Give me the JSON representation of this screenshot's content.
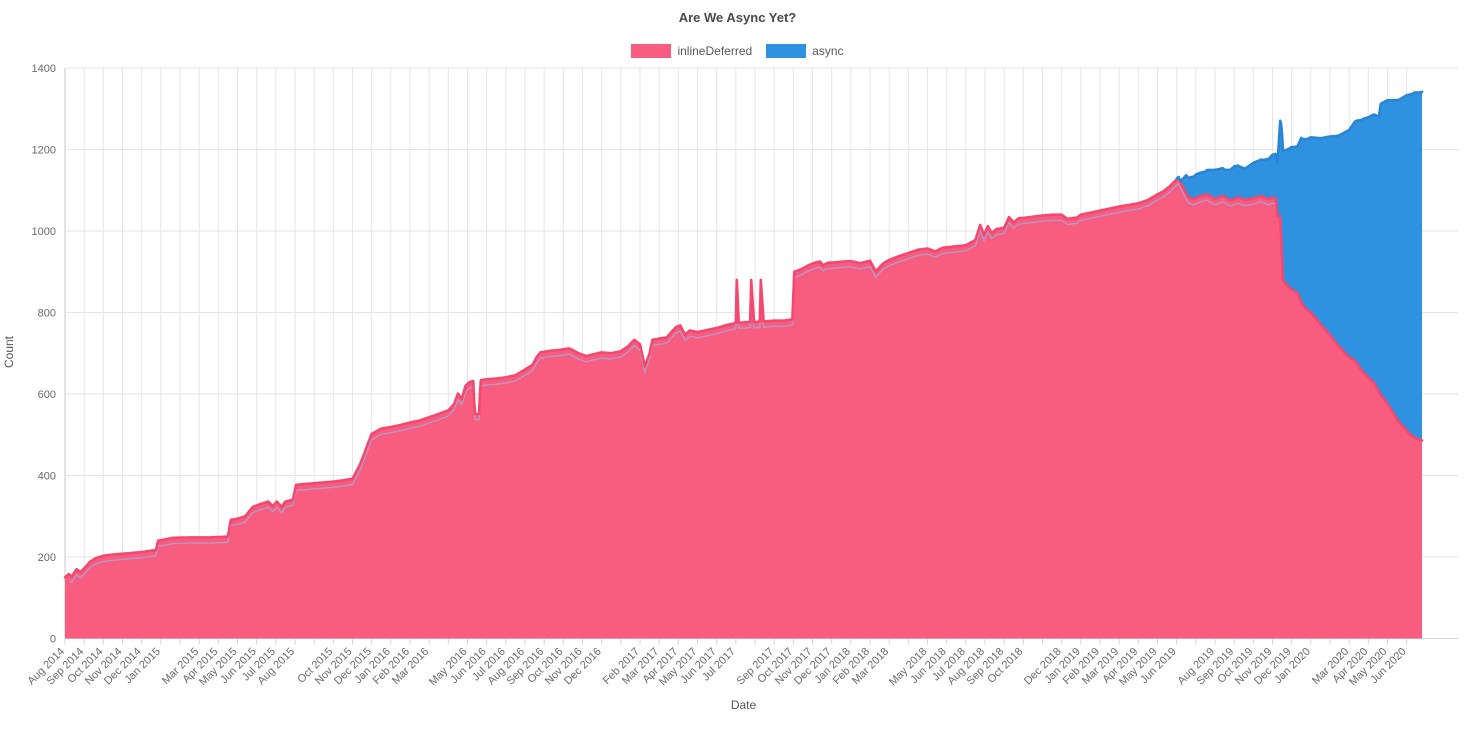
{
  "chart_data": {
    "type": "area",
    "stacked": true,
    "title": "Are We Async Yet?",
    "xlabel": "Date",
    "ylabel": "Count",
    "ylim": [
      0,
      1400
    ],
    "ytick_labels": [
      "0",
      "200",
      "400",
      "600",
      "800",
      "1000",
      "1200",
      "1400"
    ],
    "grid": true,
    "legend_position": "top",
    "x_domain": [
      0,
      70.8
    ],
    "x_months_total": 71,
    "x_ticks": [
      [
        0,
        "Aug 2014"
      ],
      [
        1,
        "Sep 2014"
      ],
      [
        2,
        "Oct 2014"
      ],
      [
        3,
        "Nov 2014"
      ],
      [
        4,
        "Dec 2014"
      ],
      [
        5,
        "Jan 2015"
      ],
      [
        7,
        "Mar 2015"
      ],
      [
        8,
        "Apr 2015"
      ],
      [
        9,
        "May 2015"
      ],
      [
        10,
        "Jun 2015"
      ],
      [
        11,
        "Jul 2015"
      ],
      [
        12,
        "Aug 2015"
      ],
      [
        14,
        "Oct 2015"
      ],
      [
        15,
        "Nov 2015"
      ],
      [
        16,
        "Dec 2015"
      ],
      [
        17,
        "Jan 2016"
      ],
      [
        18,
        "Feb 2016"
      ],
      [
        19,
        "Mar 2016"
      ],
      [
        21,
        "May 2016"
      ],
      [
        22,
        "Jun 2016"
      ],
      [
        23,
        "Jul 2016"
      ],
      [
        24,
        "Aug 2016"
      ],
      [
        25,
        "Sep 2016"
      ],
      [
        26,
        "Oct 2016"
      ],
      [
        27,
        "Nov 2016"
      ],
      [
        28,
        "Dec 2016"
      ],
      [
        30,
        "Feb 2017"
      ],
      [
        31,
        "Mar 2017"
      ],
      [
        32,
        "Apr 2017"
      ],
      [
        33,
        "May 2017"
      ],
      [
        34,
        "Jun 2017"
      ],
      [
        35,
        "Jul 2017"
      ],
      [
        37,
        "Sep 2017"
      ],
      [
        38,
        "Oct 2017"
      ],
      [
        39,
        "Nov 2017"
      ],
      [
        40,
        "Dec 2017"
      ],
      [
        41,
        "Jan 2018"
      ],
      [
        42,
        "Feb 2018"
      ],
      [
        43,
        "Mar 2018"
      ],
      [
        45,
        "May 2018"
      ],
      [
        46,
        "Jun 2018"
      ],
      [
        47,
        "Jul 2018"
      ],
      [
        48,
        "Aug 2018"
      ],
      [
        49,
        "Sep 2018"
      ],
      [
        50,
        "Oct 2018"
      ],
      [
        52,
        "Dec 2018"
      ],
      [
        53,
        "Jan 2019"
      ],
      [
        54,
        "Feb 2019"
      ],
      [
        55,
        "Mar 2019"
      ],
      [
        56,
        "Apr 2019"
      ],
      [
        57,
        "May 2019"
      ],
      [
        58,
        "Jun 2019"
      ],
      [
        60,
        "Aug 2019"
      ],
      [
        61,
        "Sep 2019"
      ],
      [
        62,
        "Oct 2019"
      ],
      [
        63,
        "Nov 2019"
      ],
      [
        64,
        "Dec 2019"
      ],
      [
        65,
        "Jan 2020"
      ],
      [
        67,
        "Mar 2020"
      ],
      [
        68,
        "Apr 2020"
      ],
      [
        69,
        "May 2020"
      ],
      [
        70,
        "Jun 2020"
      ]
    ],
    "series": [
      {
        "name": "inlineDeferred",
        "color": "#f85c7f",
        "border_color": "#f6476f",
        "points": [
          [
            0,
            150
          ],
          [
            0.2,
            158
          ],
          [
            0.35,
            152
          ],
          [
            0.6,
            170
          ],
          [
            0.8,
            163
          ],
          [
            1.0,
            172
          ],
          [
            1.3,
            188
          ],
          [
            1.6,
            197
          ],
          [
            2.0,
            203
          ],
          [
            2.5,
            206
          ],
          [
            3.0,
            208
          ],
          [
            3.5,
            210
          ],
          [
            4.0,
            212
          ],
          [
            4.4,
            215
          ],
          [
            4.75,
            217
          ],
          [
            4.85,
            240
          ],
          [
            5.2,
            243
          ],
          [
            5.6,
            247
          ],
          [
            6.5,
            248
          ],
          [
            7.5,
            248
          ],
          [
            8.5,
            250
          ],
          [
            8.65,
            291
          ],
          [
            9.0,
            294
          ],
          [
            9.4,
            300
          ],
          [
            9.8,
            323
          ],
          [
            10.2,
            330
          ],
          [
            10.6,
            336
          ],
          [
            10.85,
            325
          ],
          [
            11.05,
            336
          ],
          [
            11.3,
            323
          ],
          [
            11.5,
            336
          ],
          [
            11.9,
            341
          ],
          [
            12.05,
            377
          ],
          [
            12.5,
            379
          ],
          [
            13.0,
            381
          ],
          [
            13.5,
            383
          ],
          [
            14.0,
            385
          ],
          [
            14.5,
            388
          ],
          [
            15.0,
            392
          ],
          [
            15.2,
            410
          ],
          [
            15.4,
            428
          ],
          [
            15.6,
            452
          ],
          [
            15.8,
            478
          ],
          [
            16.0,
            502
          ],
          [
            16.5,
            515
          ],
          [
            17.0,
            519
          ],
          [
            17.5,
            524
          ],
          [
            18.0,
            530
          ],
          [
            18.5,
            535
          ],
          [
            19.0,
            543
          ],
          [
            19.5,
            551
          ],
          [
            20.0,
            560
          ],
          [
            20.3,
            575
          ],
          [
            20.5,
            601
          ],
          [
            20.7,
            588
          ],
          [
            20.9,
            620
          ],
          [
            21.1,
            629
          ],
          [
            21.3,
            632
          ],
          [
            21.38,
            551
          ],
          [
            21.6,
            551
          ],
          [
            21.68,
            634
          ],
          [
            22.0,
            636
          ],
          [
            22.5,
            638
          ],
          [
            23.0,
            641
          ],
          [
            23.5,
            646
          ],
          [
            24.0,
            660
          ],
          [
            24.4,
            672
          ],
          [
            24.6,
            690
          ],
          [
            24.8,
            702
          ],
          [
            25.3,
            706
          ],
          [
            25.8,
            708
          ],
          [
            26.3,
            712
          ],
          [
            26.8,
            700
          ],
          [
            27.2,
            693
          ],
          [
            27.6,
            698
          ],
          [
            28.0,
            702
          ],
          [
            28.5,
            700
          ],
          [
            29.0,
            705
          ],
          [
            29.4,
            718
          ],
          [
            29.7,
            733
          ],
          [
            30.0,
            722
          ],
          [
            30.25,
            668
          ],
          [
            30.5,
            700
          ],
          [
            30.65,
            733
          ],
          [
            31.0,
            736
          ],
          [
            31.4,
            739
          ],
          [
            31.6,
            750
          ],
          [
            31.9,
            765
          ],
          [
            32.1,
            768
          ],
          [
            32.35,
            746
          ],
          [
            32.6,
            756
          ],
          [
            33.0,
            752
          ],
          [
            33.5,
            757
          ],
          [
            34.0,
            762
          ],
          [
            34.5,
            769
          ],
          [
            34.9,
            773
          ],
          [
            35.0,
            775
          ],
          [
            35.05,
            880
          ],
          [
            35.15,
            775
          ],
          [
            35.5,
            776
          ],
          [
            35.75,
            777
          ],
          [
            35.8,
            880
          ],
          [
            35.95,
            776
          ],
          [
            36.25,
            778
          ],
          [
            36.3,
            880
          ],
          [
            36.45,
            778
          ],
          [
            37.0,
            780
          ],
          [
            37.5,
            780
          ],
          [
            37.95,
            783
          ],
          [
            38.05,
            900
          ],
          [
            38.4,
            906
          ],
          [
            38.8,
            916
          ],
          [
            39.1,
            922
          ],
          [
            39.4,
            925
          ],
          [
            39.55,
            916
          ],
          [
            39.8,
            922
          ],
          [
            40.2,
            923
          ],
          [
            40.6,
            925
          ],
          [
            41.0,
            926
          ],
          [
            41.5,
            921
          ],
          [
            42.0,
            927
          ],
          [
            42.3,
            901
          ],
          [
            42.7,
            921
          ],
          [
            43.0,
            929
          ],
          [
            43.5,
            938
          ],
          [
            44.0,
            946
          ],
          [
            44.5,
            954
          ],
          [
            45.0,
            957
          ],
          [
            45.4,
            950
          ],
          [
            45.8,
            959
          ],
          [
            46.2,
            961
          ],
          [
            46.6,
            963
          ],
          [
            47.0,
            965
          ],
          [
            47.5,
            978
          ],
          [
            47.75,
            1015
          ],
          [
            47.95,
            990
          ],
          [
            48.15,
            1012
          ],
          [
            48.35,
            995
          ],
          [
            48.6,
            1005
          ],
          [
            49.0,
            1008
          ],
          [
            49.25,
            1034
          ],
          [
            49.5,
            1021
          ],
          [
            49.75,
            1031
          ],
          [
            50.0,
            1032
          ],
          [
            50.5,
            1035
          ],
          [
            51.0,
            1038
          ],
          [
            51.5,
            1040
          ],
          [
            52.0,
            1040
          ],
          [
            52.3,
            1030
          ],
          [
            52.8,
            1033
          ],
          [
            53.0,
            1040
          ],
          [
            53.5,
            1045
          ],
          [
            54.0,
            1050
          ],
          [
            54.5,
            1055
          ],
          [
            55.0,
            1060
          ],
          [
            55.5,
            1064
          ],
          [
            56.0,
            1068
          ],
          [
            56.5,
            1076
          ],
          [
            57.0,
            1090
          ],
          [
            57.3,
            1097
          ],
          [
            57.6,
            1108
          ],
          [
            57.9,
            1122
          ],
          [
            58.1,
            1130
          ],
          [
            58.35,
            1105
          ],
          [
            58.6,
            1083
          ],
          [
            58.9,
            1078
          ],
          [
            59.2,
            1085
          ],
          [
            59.6,
            1090
          ],
          [
            60.0,
            1078
          ],
          [
            60.4,
            1086
          ],
          [
            60.8,
            1075
          ],
          [
            61.2,
            1082
          ],
          [
            61.6,
            1076
          ],
          [
            62.0,
            1080
          ],
          [
            62.4,
            1086
          ],
          [
            62.8,
            1078
          ],
          [
            63.0,
            1082
          ],
          [
            63.18,
            1080
          ],
          [
            63.25,
            1035
          ],
          [
            63.42,
            1035
          ],
          [
            63.48,
            940
          ],
          [
            63.55,
            878
          ],
          [
            63.8,
            865
          ],
          [
            64.0,
            856
          ],
          [
            64.3,
            848
          ],
          [
            64.55,
            820
          ],
          [
            64.8,
            806
          ],
          [
            65.0,
            800
          ],
          [
            65.3,
            783
          ],
          [
            65.6,
            766
          ],
          [
            66.0,
            745
          ],
          [
            66.3,
            726
          ],
          [
            66.6,
            710
          ],
          [
            67.0,
            690
          ],
          [
            67.3,
            682
          ],
          [
            67.6,
            661
          ],
          [
            68.0,
            640
          ],
          [
            68.3,
            627
          ],
          [
            68.6,
            601
          ],
          [
            69.0,
            576
          ],
          [
            69.3,
            553
          ],
          [
            69.6,
            531
          ],
          [
            70.0,
            510
          ],
          [
            70.3,
            496
          ],
          [
            70.6,
            489
          ],
          [
            70.8,
            486
          ]
        ]
      },
      {
        "name": "async",
        "color": "#2f92e0",
        "border_color": "#2a86d4",
        "points": [
          [
            58.0,
            2
          ],
          [
            58.2,
            3
          ],
          [
            58.5,
            45
          ],
          [
            59.0,
            58
          ],
          [
            59.5,
            57
          ],
          [
            60.0,
            72
          ],
          [
            60.5,
            67
          ],
          [
            61.0,
            80
          ],
          [
            61.5,
            76
          ],
          [
            62.0,
            87
          ],
          [
            62.5,
            90
          ],
          [
            63.0,
            105
          ],
          [
            63.2,
            110
          ],
          [
            63.3,
            157
          ],
          [
            63.5,
            314
          ],
          [
            64.0,
            350
          ],
          [
            64.3,
            359
          ],
          [
            64.5,
            403
          ],
          [
            65.0,
            430
          ],
          [
            65.5,
            456
          ],
          [
            66.0,
            487
          ],
          [
            66.5,
            520
          ],
          [
            67.0,
            558
          ],
          [
            67.4,
            596
          ],
          [
            67.8,
            626
          ],
          [
            68.3,
            659
          ],
          [
            68.55,
            675
          ],
          [
            68.65,
            714
          ],
          [
            69.0,
            745
          ],
          [
            69.5,
            783
          ],
          [
            70.0,
            823
          ],
          [
            70.4,
            846
          ],
          [
            70.8,
            855
          ]
        ]
      }
    ]
  }
}
